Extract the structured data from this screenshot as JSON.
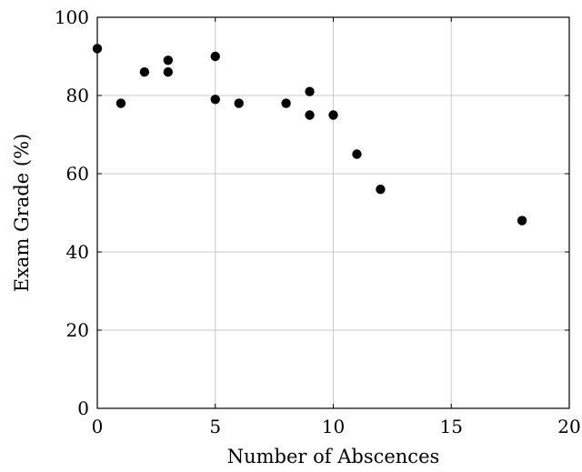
{
  "chart_data": {
    "type": "scatter",
    "xlabel": "Number of Abscences",
    "ylabel": "Exam Grade (%)",
    "xlim": [
      0,
      20
    ],
    "ylim": [
      0,
      100
    ],
    "xticks": [
      0,
      5,
      10,
      15,
      20
    ],
    "yticks": [
      0,
      20,
      40,
      60,
      80,
      100
    ],
    "grid": true,
    "marker_color": "#000000",
    "points": [
      {
        "x": 0,
        "y": 92
      },
      {
        "x": 1,
        "y": 78
      },
      {
        "x": 2,
        "y": 86
      },
      {
        "x": 3,
        "y": 89
      },
      {
        "x": 3,
        "y": 86
      },
      {
        "x": 5,
        "y": 90
      },
      {
        "x": 5,
        "y": 79
      },
      {
        "x": 6,
        "y": 78
      },
      {
        "x": 8,
        "y": 78
      },
      {
        "x": 9,
        "y": 81
      },
      {
        "x": 9,
        "y": 75
      },
      {
        "x": 10,
        "y": 75
      },
      {
        "x": 11,
        "y": 65
      },
      {
        "x": 12,
        "y": 56
      },
      {
        "x": 18,
        "y": 48
      }
    ]
  }
}
